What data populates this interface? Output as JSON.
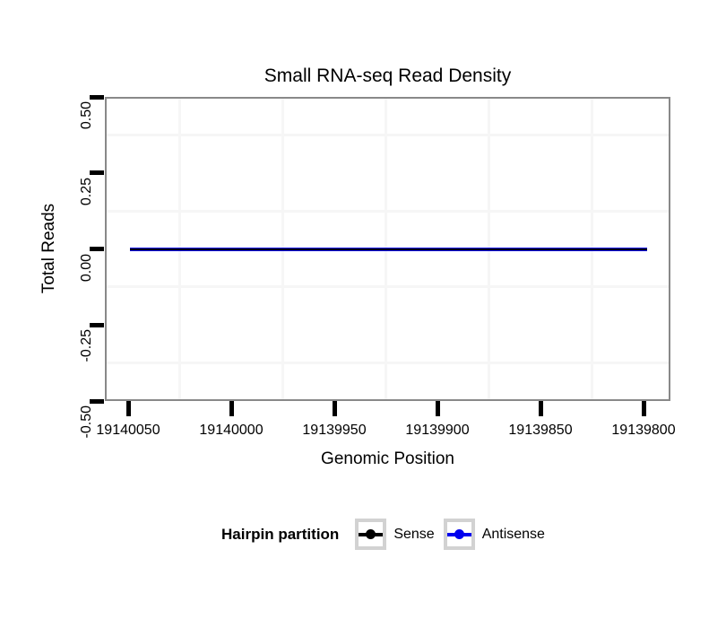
{
  "title": "Small RNA-seq Read Density",
  "x_axis": {
    "label": "Genomic Position",
    "tick_labels": [
      "19140050",
      "19140000",
      "19139950",
      "19139900",
      "19139850",
      "19139800"
    ]
  },
  "y_axis": {
    "label": "Total Reads",
    "tick_labels": [
      "0.50",
      "0.25",
      "0.00",
      "-0.25",
      "-0.50"
    ]
  },
  "legend": {
    "title": "Hairpin partition",
    "items": [
      {
        "label": "Sense",
        "color": "#000000"
      },
      {
        "label": "Antisense",
        "color": "#0000EE"
      }
    ]
  },
  "colors": {
    "panel_border": "#898989",
    "grid_minor": "#f6f6f6",
    "tick": "#000000",
    "legend_key_border": "#d2d2d2",
    "sense": "#000000",
    "antisense": "#0000EE",
    "overlap_fringe": "#2d2d80"
  },
  "chart_data": {
    "type": "line",
    "title": "Small RNA-seq Read Density",
    "xlabel": "Genomic Position",
    "ylabel": "Total Reads",
    "x_axis": {
      "reversed": true,
      "ticks": [
        19140050,
        19140000,
        19139950,
        19139900,
        19139850,
        19139800
      ],
      "shown_range": [
        19140061,
        19139787
      ]
    },
    "ylim": [
      -0.5,
      0.5
    ],
    "yticks": [
      0.5,
      0.25,
      0.0,
      -0.25,
      -0.5
    ],
    "grid": "minor-gridlines-only",
    "legend_title": "Hairpin partition",
    "legend_position": "bottom",
    "series": [
      {
        "name": "Sense",
        "color": "#000000",
        "x_start": 19140049,
        "x_end": 19139798,
        "constant_y": 0
      },
      {
        "name": "Antisense",
        "color": "#0000EE",
        "x_start": 19140049,
        "x_end": 19139798,
        "constant_y": 0
      }
    ]
  }
}
